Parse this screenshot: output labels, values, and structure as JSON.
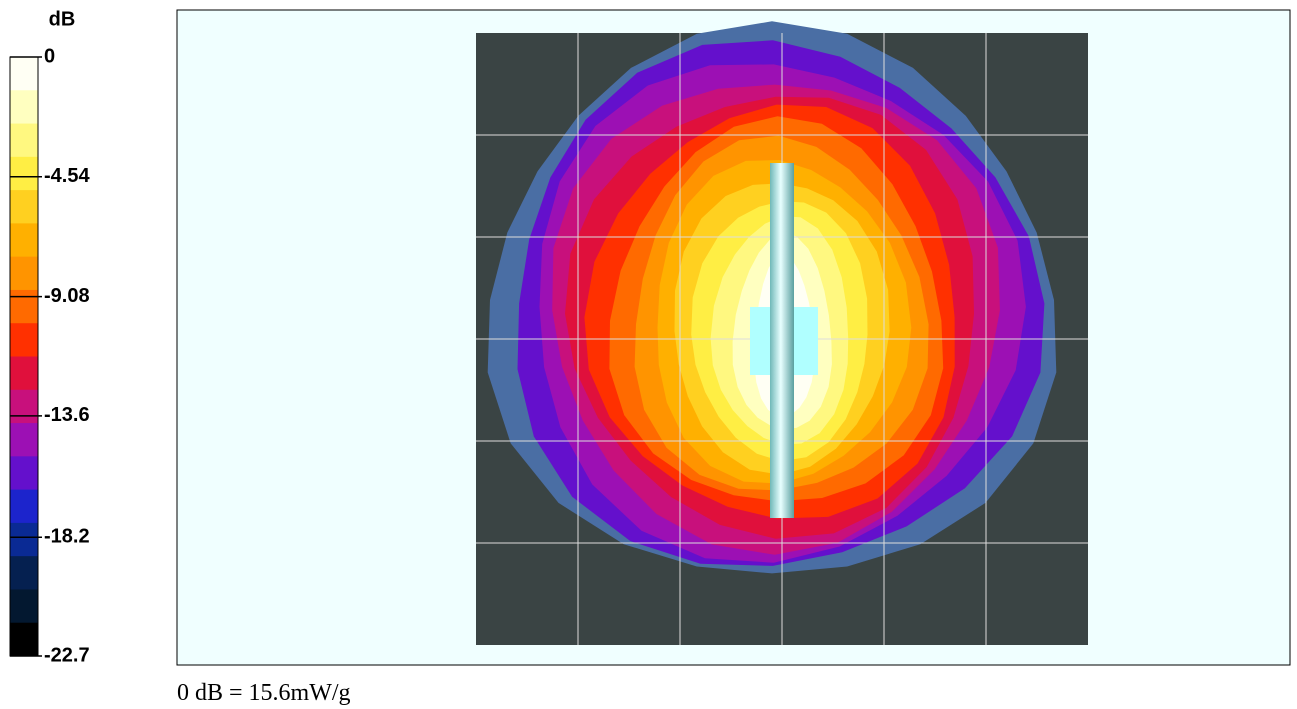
{
  "chart_data": {
    "type": "contour",
    "colorbar_label": "dB",
    "clim": [
      -22.7,
      0
    ],
    "cticks": [
      0,
      -4.54,
      -9.08,
      -13.6,
      -18.2,
      -22.7
    ],
    "colors": [
      "#fffff4",
      "#ffffc0",
      "#fff880",
      "#ffee44",
      "#ffd020",
      "#ffb000",
      "#ff9400",
      "#ff6a00",
      "#ff3000",
      "#e0103c",
      "#c8107c",
      "#9c10b4",
      "#6410cc",
      "#1c24cc",
      "#0a2a94",
      "#052050",
      "#031830",
      "#000000"
    ],
    "footer": "0 dB = 15.6mW/g"
  }
}
